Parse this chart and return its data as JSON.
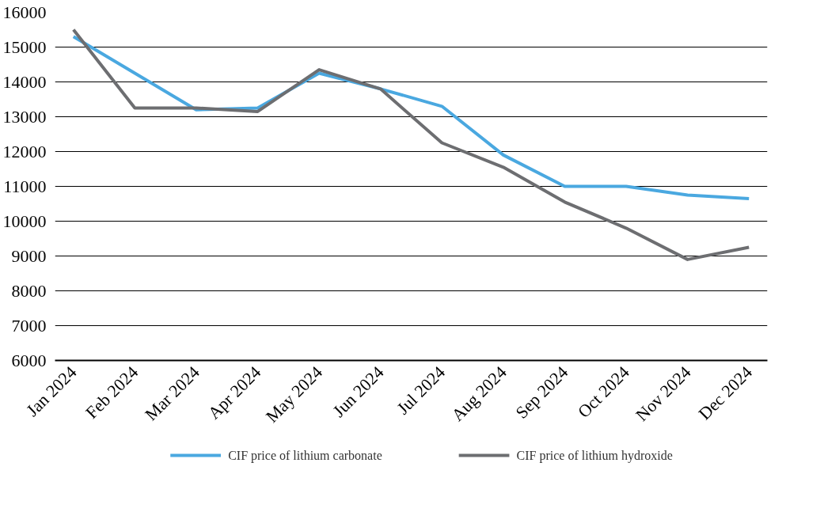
{
  "chart_data": {
    "type": "line",
    "categories": [
      "Jan 2024",
      "Feb 2024",
      "Mar 2024",
      "Apr 2024",
      "May 2024",
      "Jun 2024",
      "Jul 2024",
      "Aug 2024",
      "Sep 2024",
      "Oct 2024",
      "Nov 2024",
      "Dec 2024"
    ],
    "series": [
      {
        "name": "CIF price of lithium carbonate",
        "color": "#4aa8e0",
        "values": [
          15300,
          14250,
          13200,
          13250,
          14250,
          13800,
          13300,
          11900,
          11000,
          11000,
          10750,
          10650
        ]
      },
      {
        "name": "CIF price of lithium hydroxide",
        "color": "#6d6e71",
        "values": [
          15500,
          13250,
          13250,
          13150,
          14350,
          13800,
          12250,
          11550,
          10550,
          9800,
          8900,
          9250
        ]
      }
    ],
    "ylim": [
      6000,
      16000
    ],
    "yticks": [
      6000,
      7000,
      8000,
      9000,
      10000,
      11000,
      12000,
      13000,
      14000,
      15000,
      16000
    ],
    "grid": "y",
    "legend": "bottom",
    "marker": "none",
    "line_style": "solid"
  }
}
